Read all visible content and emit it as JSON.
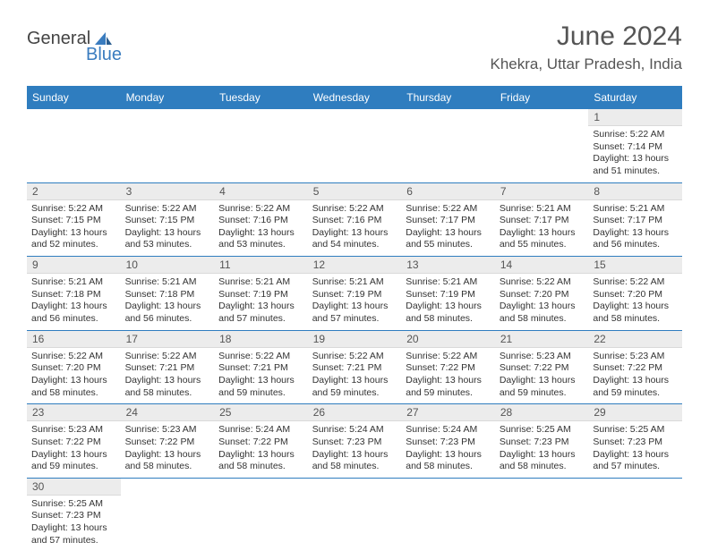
{
  "brand": {
    "general": "General",
    "blue": "Blue"
  },
  "title": {
    "month": "June 2024",
    "location": "Khekra, Uttar Pradesh, India"
  },
  "colors": {
    "header_bg": "#2f7dbf",
    "daynum_bg": "#ececec",
    "brand_blue": "#3a7cbf"
  },
  "weekdays": [
    "Sunday",
    "Monday",
    "Tuesday",
    "Wednesday",
    "Thursday",
    "Friday",
    "Saturday"
  ],
  "weeks": [
    [
      null,
      null,
      null,
      null,
      null,
      null,
      {
        "n": "1",
        "sunrise": "5:22 AM",
        "sunset": "7:14 PM",
        "day_h": "13",
        "day_m": "51"
      }
    ],
    [
      {
        "n": "2",
        "sunrise": "5:22 AM",
        "sunset": "7:15 PM",
        "day_h": "13",
        "day_m": "52"
      },
      {
        "n": "3",
        "sunrise": "5:22 AM",
        "sunset": "7:15 PM",
        "day_h": "13",
        "day_m": "53"
      },
      {
        "n": "4",
        "sunrise": "5:22 AM",
        "sunset": "7:16 PM",
        "day_h": "13",
        "day_m": "53"
      },
      {
        "n": "5",
        "sunrise": "5:22 AM",
        "sunset": "7:16 PM",
        "day_h": "13",
        "day_m": "54"
      },
      {
        "n": "6",
        "sunrise": "5:22 AM",
        "sunset": "7:17 PM",
        "day_h": "13",
        "day_m": "55"
      },
      {
        "n": "7",
        "sunrise": "5:21 AM",
        "sunset": "7:17 PM",
        "day_h": "13",
        "day_m": "55"
      },
      {
        "n": "8",
        "sunrise": "5:21 AM",
        "sunset": "7:17 PM",
        "day_h": "13",
        "day_m": "56"
      }
    ],
    [
      {
        "n": "9",
        "sunrise": "5:21 AM",
        "sunset": "7:18 PM",
        "day_h": "13",
        "day_m": "56"
      },
      {
        "n": "10",
        "sunrise": "5:21 AM",
        "sunset": "7:18 PM",
        "day_h": "13",
        "day_m": "56"
      },
      {
        "n": "11",
        "sunrise": "5:21 AM",
        "sunset": "7:19 PM",
        "day_h": "13",
        "day_m": "57"
      },
      {
        "n": "12",
        "sunrise": "5:21 AM",
        "sunset": "7:19 PM",
        "day_h": "13",
        "day_m": "57"
      },
      {
        "n": "13",
        "sunrise": "5:21 AM",
        "sunset": "7:19 PM",
        "day_h": "13",
        "day_m": "58"
      },
      {
        "n": "14",
        "sunrise": "5:22 AM",
        "sunset": "7:20 PM",
        "day_h": "13",
        "day_m": "58"
      },
      {
        "n": "15",
        "sunrise": "5:22 AM",
        "sunset": "7:20 PM",
        "day_h": "13",
        "day_m": "58"
      }
    ],
    [
      {
        "n": "16",
        "sunrise": "5:22 AM",
        "sunset": "7:20 PM",
        "day_h": "13",
        "day_m": "58"
      },
      {
        "n": "17",
        "sunrise": "5:22 AM",
        "sunset": "7:21 PM",
        "day_h": "13",
        "day_m": "58"
      },
      {
        "n": "18",
        "sunrise": "5:22 AM",
        "sunset": "7:21 PM",
        "day_h": "13",
        "day_m": "59"
      },
      {
        "n": "19",
        "sunrise": "5:22 AM",
        "sunset": "7:21 PM",
        "day_h": "13",
        "day_m": "59"
      },
      {
        "n": "20",
        "sunrise": "5:22 AM",
        "sunset": "7:22 PM",
        "day_h": "13",
        "day_m": "59"
      },
      {
        "n": "21",
        "sunrise": "5:23 AM",
        "sunset": "7:22 PM",
        "day_h": "13",
        "day_m": "59"
      },
      {
        "n": "22",
        "sunrise": "5:23 AM",
        "sunset": "7:22 PM",
        "day_h": "13",
        "day_m": "59"
      }
    ],
    [
      {
        "n": "23",
        "sunrise": "5:23 AM",
        "sunset": "7:22 PM",
        "day_h": "13",
        "day_m": "59"
      },
      {
        "n": "24",
        "sunrise": "5:23 AM",
        "sunset": "7:22 PM",
        "day_h": "13",
        "day_m": "58"
      },
      {
        "n": "25",
        "sunrise": "5:24 AM",
        "sunset": "7:22 PM",
        "day_h": "13",
        "day_m": "58"
      },
      {
        "n": "26",
        "sunrise": "5:24 AM",
        "sunset": "7:23 PM",
        "day_h": "13",
        "day_m": "58"
      },
      {
        "n": "27",
        "sunrise": "5:24 AM",
        "sunset": "7:23 PM",
        "day_h": "13",
        "day_m": "58"
      },
      {
        "n": "28",
        "sunrise": "5:25 AM",
        "sunset": "7:23 PM",
        "day_h": "13",
        "day_m": "58"
      },
      {
        "n": "29",
        "sunrise": "5:25 AM",
        "sunset": "7:23 PM",
        "day_h": "13",
        "day_m": "57"
      }
    ],
    [
      {
        "n": "30",
        "sunrise": "5:25 AM",
        "sunset": "7:23 PM",
        "day_h": "13",
        "day_m": "57"
      },
      null,
      null,
      null,
      null,
      null,
      null
    ]
  ],
  "labels": {
    "sunrise": "Sunrise:",
    "sunset": "Sunset:",
    "daylight_prefix": "Daylight:",
    "hours_word": "hours",
    "and_word": "and",
    "minutes_word": "minutes."
  }
}
